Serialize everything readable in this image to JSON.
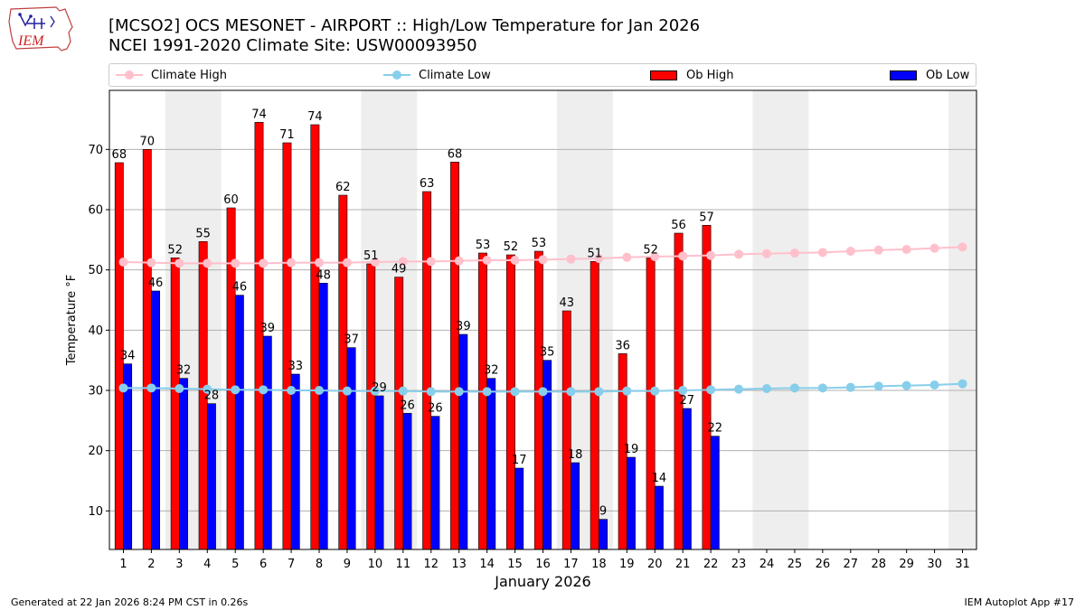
{
  "header": {
    "title_line1": "[MCSO2] OCS MESONET - AIRPORT :: High/Low Temperature for Jan 2026",
    "title_line2": "NCEI 1991-2020 Climate Site: USW00093950",
    "logo_text": "IEM"
  },
  "legend": {
    "climate_high": "Climate High",
    "climate_low": "Climate Low",
    "ob_high": "Ob High",
    "ob_low": "Ob Low"
  },
  "footer": {
    "left": "Generated at 22 Jan 2026 8:24 PM CST in 0.26s",
    "right": "IEM Autoplot App #17"
  },
  "colors": {
    "ob_high": "#ff0000",
    "ob_low": "#0000ff",
    "climate_high": "#ffc0cb",
    "climate_low": "#87ceeb",
    "weekend_band": "#eeeeee",
    "grid": "#b0b0b0"
  },
  "chart_data": {
    "type": "bar",
    "xlabel": "January 2026",
    "ylabel": "Temperature °F",
    "xlim": [
      0.5,
      31.5
    ],
    "ylim": [
      3.6,
      79.8
    ],
    "yticks": [
      10,
      20,
      30,
      40,
      50,
      60,
      70
    ],
    "grid": true,
    "legend_position": "top",
    "days": [
      1,
      2,
      3,
      4,
      5,
      6,
      7,
      8,
      9,
      10,
      11,
      12,
      13,
      14,
      15,
      16,
      17,
      18,
      19,
      20,
      21,
      22,
      23,
      24,
      25,
      26,
      27,
      28,
      29,
      30,
      31
    ],
    "shaded_days": [
      3,
      4,
      10,
      11,
      17,
      18,
      24,
      25,
      31
    ],
    "series": [
      {
        "name": "Ob High",
        "kind": "bar",
        "values": [
          68,
          70,
          52,
          55,
          60,
          74,
          71,
          74,
          62,
          51,
          49,
          63,
          68,
          53,
          52,
          53,
          43,
          51,
          36,
          52,
          56,
          57
        ],
        "display_values": [
          67.8,
          70.0,
          52.0,
          54.7,
          60.3,
          74.5,
          71.1,
          74.1,
          62.4,
          51.0,
          48.8,
          63.0,
          67.9,
          52.8,
          52.5,
          53.1,
          43.2,
          51.4,
          36.1,
          52.0,
          56.1,
          57.4
        ]
      },
      {
        "name": "Ob Low",
        "kind": "bar",
        "values": [
          34,
          46,
          32,
          28,
          46,
          39,
          33,
          48,
          37,
          29,
          26,
          26,
          39,
          32,
          17,
          35,
          18,
          9,
          19,
          14,
          27,
          22
        ],
        "display_values": [
          34.4,
          46.5,
          32.0,
          27.8,
          45.8,
          39.0,
          32.7,
          47.8,
          37.1,
          29.1,
          26.2,
          25.7,
          39.3,
          32.0,
          17.1,
          35.0,
          18.0,
          8.6,
          18.9,
          14.1,
          27.0,
          22.4
        ]
      },
      {
        "name": "Climate High",
        "kind": "line",
        "values": [
          51.3,
          51.2,
          51.1,
          51.1,
          51.1,
          51.1,
          51.2,
          51.2,
          51.2,
          51.3,
          51.4,
          51.4,
          51.5,
          51.6,
          51.6,
          51.7,
          51.8,
          51.9,
          52.1,
          52.2,
          52.3,
          52.4,
          52.6,
          52.7,
          52.8,
          52.9,
          53.1,
          53.3,
          53.4,
          53.6,
          53.8
        ]
      },
      {
        "name": "Climate Low",
        "kind": "line",
        "values": [
          30.4,
          30.4,
          30.3,
          30.2,
          30.1,
          30.1,
          30.0,
          30.0,
          29.9,
          29.9,
          29.9,
          29.8,
          29.8,
          29.8,
          29.8,
          29.8,
          29.8,
          29.8,
          29.9,
          29.9,
          30.0,
          30.1,
          30.2,
          30.3,
          30.4,
          30.4,
          30.5,
          30.7,
          30.8,
          30.9,
          31.1
        ]
      }
    ]
  }
}
